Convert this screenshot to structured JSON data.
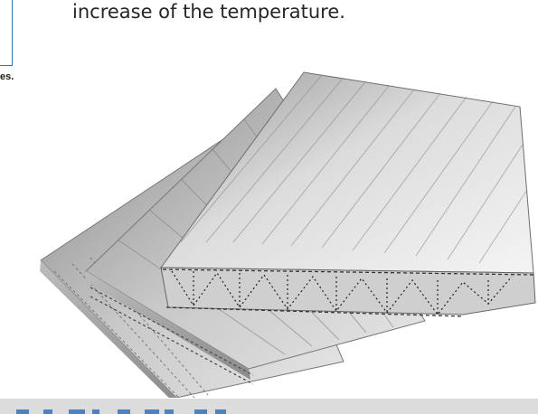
{
  "body_text": "increase of the temperature.",
  "left_caption_tail": "es.",
  "figure": {
    "subject": "stacked multiwall polycarbonate sheets",
    "sheet_count": 3
  },
  "colors": {
    "frame_border": "#3d6fa8",
    "text": "#262626",
    "footer_band": "#dcdcdc",
    "footer_glyphs": "#4f81bd"
  }
}
